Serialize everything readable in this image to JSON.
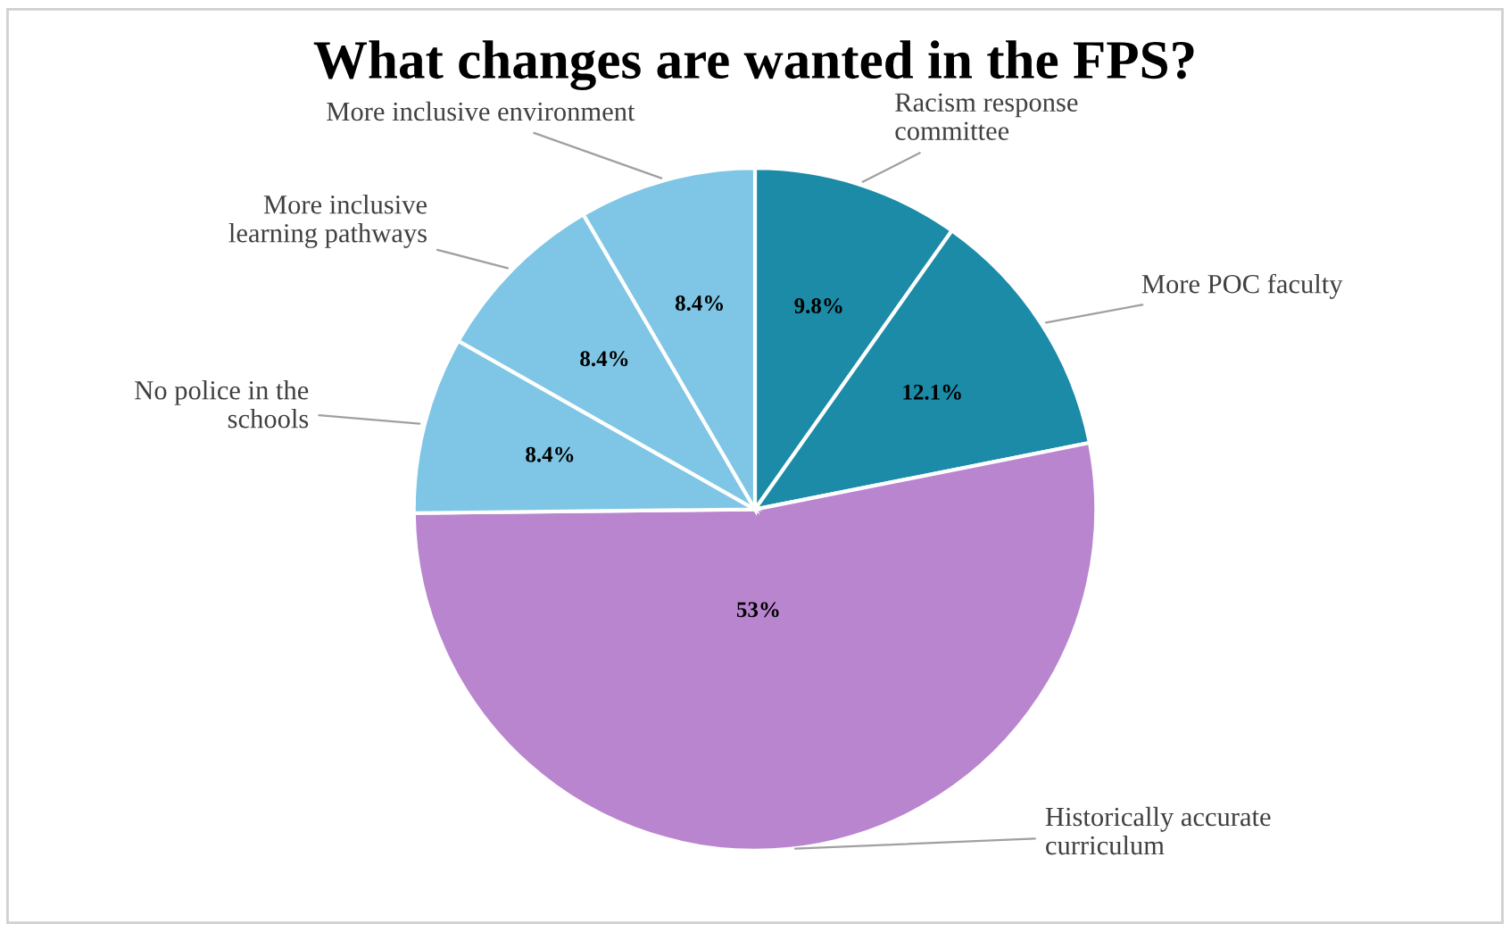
{
  "chart_data": {
    "type": "pie",
    "title": "What changes are wanted in the FPS?",
    "categories": [
      "Racism response\ncommittee",
      "More POC faculty",
      "Historically accurate\ncurriculum",
      "No police in the\nschools",
      "More inclusive\nlearning pathways",
      "More inclusive environment"
    ],
    "values": [
      9.8,
      12.1,
      53,
      8.4,
      8.4,
      8.4
    ],
    "value_labels": [
      "9.8%",
      "12.1%",
      "53%",
      "8.4%",
      "8.4%",
      "8.4%"
    ],
    "colors": [
      "#1b8ba8",
      "#1b8ba8",
      "#b985cf",
      "#7fc6e6",
      "#7fc6e6",
      "#7fc6e6"
    ]
  }
}
